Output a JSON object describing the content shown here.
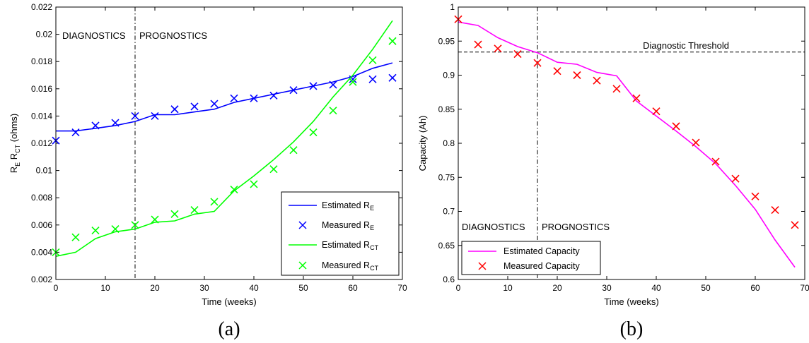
{
  "panels": [
    {
      "caption": "(a)",
      "xlabel": "Time (weeks)",
      "ylabel": {
        "base": "R",
        "sub1": "E",
        "mid": " R",
        "sub2": "CT",
        "tail": " (ohms)"
      },
      "annotations": {
        "left": "DIAGNOSTICS",
        "right": "PROGNOSTICS"
      },
      "legend": [
        {
          "text": "Estimated R",
          "sub": "E"
        },
        {
          "text": "Measured R",
          "sub": "E"
        },
        {
          "text": "Estimated R",
          "sub": "CT"
        },
        {
          "text": "Measured R",
          "sub": "CT"
        }
      ]
    },
    {
      "caption": "(b)",
      "xlabel": "Time (weeks)",
      "ylabel": "Capacity (Ah)",
      "annotations": {
        "left": "DIAGNOSTICS",
        "right": "PROGNOSTICS",
        "threshold": "Diagnostic Threshold"
      },
      "legend": [
        {
          "text": "Estimated Capacity"
        },
        {
          "text": "Measured Capacity"
        }
      ]
    }
  ],
  "colors": {
    "blue": "#0000ff",
    "green": "#00ff00",
    "magenta": "#ff00ff",
    "red": "#ff0000",
    "axis": "#000000"
  },
  "chart_data": [
    {
      "type": "line",
      "xlim": [
        0,
        70
      ],
      "ylim": [
        0.002,
        0.022
      ],
      "xticks": [
        0,
        10,
        20,
        30,
        40,
        50,
        60,
        70
      ],
      "yticks": [
        0.002,
        0.004,
        0.006,
        0.008,
        0.01,
        0.012,
        0.014,
        0.016,
        0.018,
        0.02,
        0.022
      ],
      "ytick_labels": [
        "0.002",
        "0.004",
        "0.006",
        "0.008",
        "0.01",
        "0.012",
        "0.014",
        "0.016",
        "0.018",
        "0.02",
        "0.022"
      ],
      "vline_x": 16,
      "legend_position": "bottom-right",
      "series": [
        {
          "style": "line",
          "color": "#0000ff",
          "x": [
            0,
            4,
            8,
            12,
            16,
            20,
            24,
            28,
            32,
            36,
            40,
            44,
            48,
            52,
            56,
            60,
            64,
            68
          ],
          "y": [
            0.0129,
            0.0129,
            0.0131,
            0.0133,
            0.0136,
            0.0141,
            0.0141,
            0.0143,
            0.0145,
            0.015,
            0.0153,
            0.0156,
            0.0159,
            0.0162,
            0.0165,
            0.0169,
            0.0175,
            0.0179
          ]
        },
        {
          "style": "x",
          "color": "#0000ff",
          "x": [
            0,
            4,
            8,
            12,
            16,
            20,
            24,
            28,
            32,
            36,
            40,
            44,
            48,
            52,
            56,
            60,
            64,
            68
          ],
          "y": [
            0.0122,
            0.0128,
            0.0133,
            0.0135,
            0.014,
            0.014,
            0.0145,
            0.0147,
            0.0149,
            0.0153,
            0.0153,
            0.0155,
            0.0159,
            0.0162,
            0.0163,
            0.0167,
            0.0167,
            0.0168
          ]
        },
        {
          "style": "line",
          "color": "#00ff00",
          "x": [
            0,
            4,
            8,
            12,
            16,
            20,
            24,
            28,
            32,
            36,
            40,
            44,
            48,
            52,
            56,
            60,
            64,
            68
          ],
          "y": [
            0.0037,
            0.004,
            0.005,
            0.0055,
            0.0057,
            0.0062,
            0.0063,
            0.0068,
            0.007,
            0.0085,
            0.0096,
            0.0108,
            0.0121,
            0.0136,
            0.0154,
            0.017,
            0.0189,
            0.021
          ]
        },
        {
          "style": "x",
          "color": "#00ff00",
          "x": [
            0,
            4,
            8,
            12,
            16,
            20,
            24,
            28,
            32,
            36,
            40,
            44,
            48,
            52,
            56,
            60,
            64,
            68
          ],
          "y": [
            0.004,
            0.0051,
            0.0056,
            0.0057,
            0.006,
            0.0064,
            0.0068,
            0.0071,
            0.0077,
            0.0086,
            0.009,
            0.0101,
            0.0115,
            0.0128,
            0.0144,
            0.0165,
            0.0181,
            0.0195
          ]
        }
      ]
    },
    {
      "type": "line",
      "xlim": [
        0,
        70
      ],
      "ylim": [
        0.6,
        1.0
      ],
      "xticks": [
        0,
        10,
        20,
        30,
        40,
        50,
        60,
        70
      ],
      "yticks": [
        0.6,
        0.65,
        0.7,
        0.75,
        0.8,
        0.85,
        0.9,
        0.95,
        1.0
      ],
      "ytick_labels": [
        "0.6",
        "0.65",
        "0.7",
        "0.75",
        "0.8",
        "0.85",
        "0.9",
        "0.95",
        "1"
      ],
      "vline_x": 16,
      "hline_y": 0.934,
      "legend_position": "bottom-left",
      "series": [
        {
          "style": "line",
          "color": "#ff00ff",
          "x": [
            0,
            4,
            8,
            12,
            16,
            20,
            24,
            28,
            32,
            36,
            40,
            44,
            48,
            52,
            56,
            60,
            64,
            68
          ],
          "y": [
            0.978,
            0.973,
            0.955,
            0.942,
            0.933,
            0.919,
            0.916,
            0.904,
            0.899,
            0.862,
            0.84,
            0.818,
            0.795,
            0.77,
            0.738,
            0.703,
            0.658,
            0.618
          ]
        },
        {
          "style": "x",
          "color": "#ff0000",
          "x": [
            0,
            4,
            8,
            12,
            16,
            20,
            24,
            28,
            32,
            36,
            40,
            44,
            48,
            52,
            56,
            60,
            64,
            68
          ],
          "y": [
            0.982,
            0.945,
            0.939,
            0.931,
            0.918,
            0.906,
            0.9,
            0.892,
            0.88,
            0.866,
            0.847,
            0.825,
            0.801,
            0.773,
            0.748,
            0.722,
            0.702,
            0.68
          ]
        }
      ]
    }
  ]
}
